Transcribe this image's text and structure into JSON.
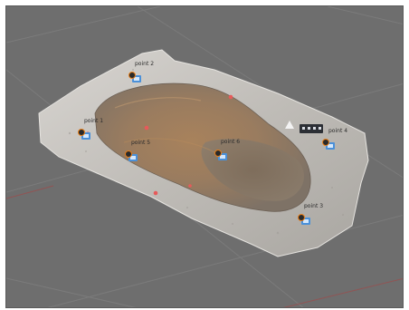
{
  "viewport": {
    "background": "#6e6e6e"
  },
  "scene": {
    "ground_grid_color": "#7b7b7b",
    "grid_accent_color": "#a04848",
    "terrain_colors": [
      "#c9c6c2",
      "#9a8d7d",
      "#a17c57",
      "#7c6f62"
    ]
  },
  "markers": [
    {
      "label": "point 2",
      "icon": "pin-icon"
    },
    {
      "label": "point 1",
      "icon": "pin-icon"
    },
    {
      "label": "point 5",
      "icon": "pin-icon"
    },
    {
      "label": "point 6",
      "icon": "pin-icon"
    },
    {
      "label": "point 4",
      "icon": "pin-icon"
    },
    {
      "label": "point 3",
      "icon": "pin-icon"
    }
  ],
  "icons": {
    "marker_pin": "pin-icon",
    "marker_ring": "target-ring-icon",
    "orientation": "compass-arrow-icon",
    "toolbar": "view-toolbar-icon"
  },
  "accent_colors": {
    "marker_ring": "#e87d16",
    "marker_pin": "#4a90d9"
  }
}
